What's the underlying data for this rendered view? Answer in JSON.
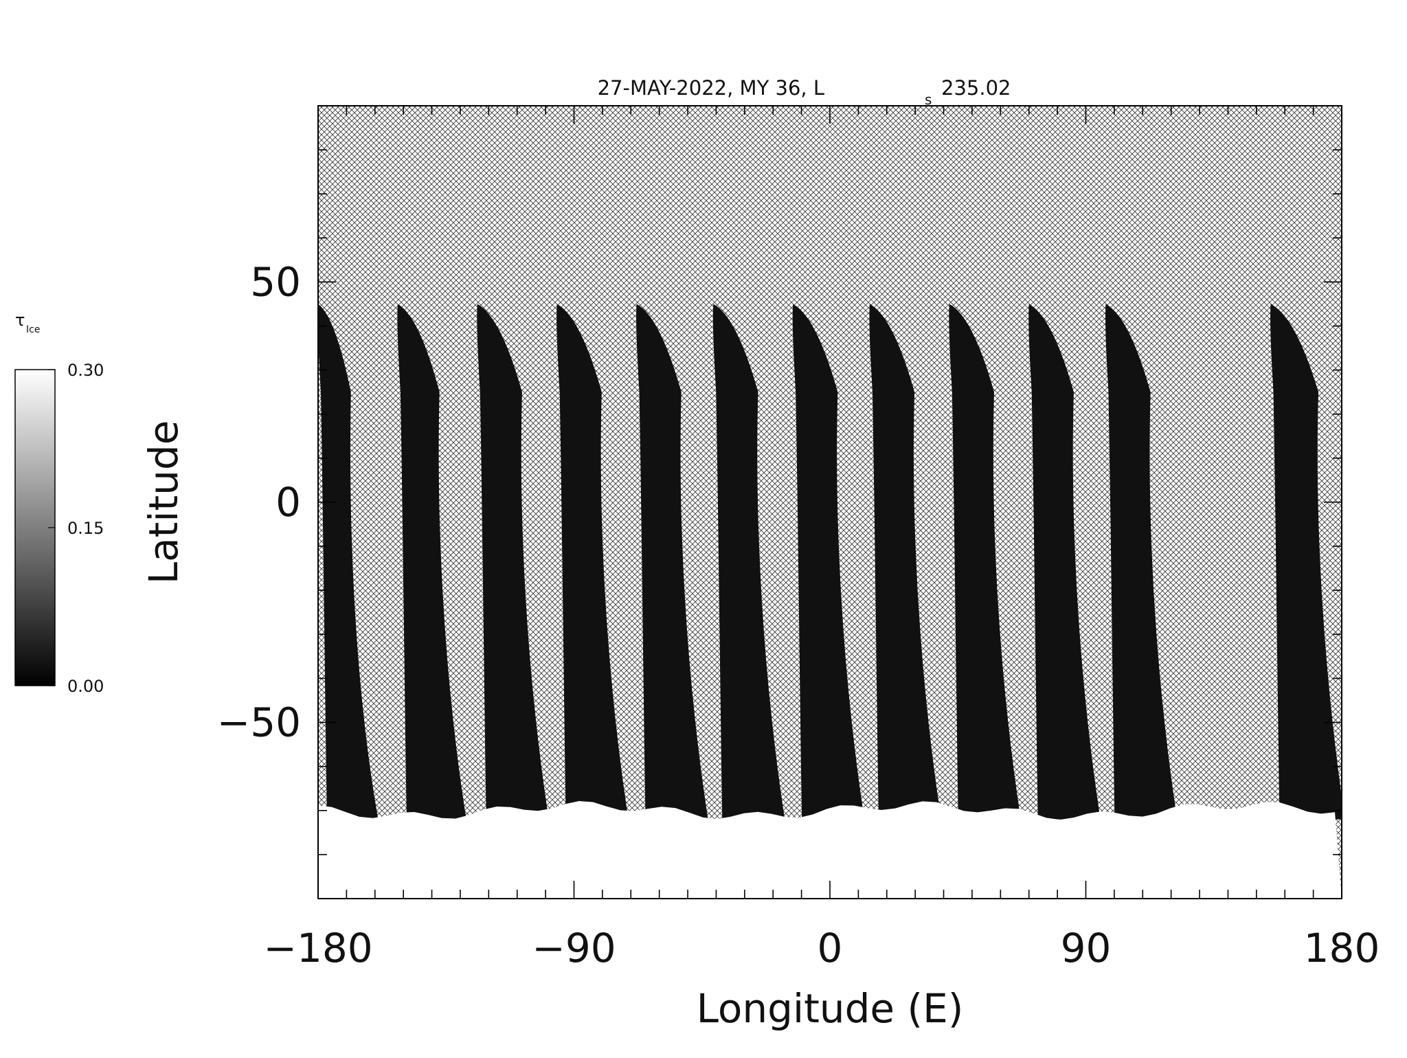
{
  "chart_data": {
    "type": "heatmap",
    "title": "27-MAY-2022, MY 36,  L",
    "title_subscript": "s",
    "title_value": "235.02",
    "xlabel": "Longitude (E)",
    "ylabel": "Latitude",
    "xlim": [
      -180,
      180
    ],
    "ylim": [
      -90,
      90
    ],
    "x_ticks": [
      -180,
      -90,
      0,
      90,
      180
    ],
    "x_tick_labels": [
      "−180",
      "−90",
      "0",
      "90",
      "180"
    ],
    "y_ticks": [
      -50,
      0,
      50
    ],
    "y_tick_labels": [
      "−50",
      "0",
      "50"
    ],
    "no_data_fill": "crosshatch",
    "grid": false,
    "colorbar": {
      "label": "τ",
      "label_subscript": "Ice",
      "range": [
        0.0,
        0.3
      ],
      "tick_values": [
        0.0,
        0.15,
        0.3
      ],
      "tick_labels": [
        "0.00",
        "0.15",
        "0.30"
      ],
      "colormap": "grayscale",
      "low_color": "#000000",
      "high_color": "#ffffff",
      "placement": "left"
    },
    "swaths": [
      {
        "lon_top": -180,
        "width": 11
      },
      {
        "lon_top": -152,
        "width": 14
      },
      {
        "lon_top": -124,
        "width": 15
      },
      {
        "lon_top": -96,
        "width": 15
      },
      {
        "lon_top": -68,
        "width": 15
      },
      {
        "lon_top": -41,
        "width": 15
      },
      {
        "lon_top": -13,
        "width": 15
      },
      {
        "lon_top": 14,
        "width": 15
      },
      {
        "lon_top": 42,
        "width": 15
      },
      {
        "lon_top": 70,
        "width": 15
      },
      {
        "lon_top": 97,
        "width": 15
      },
      {
        "lon_top": 155,
        "width": 16
      }
    ],
    "swath_top_lat": 45,
    "swath_value": 0.02,
    "polar_ice_lat": -70,
    "polar_ice_value": 0.3
  }
}
